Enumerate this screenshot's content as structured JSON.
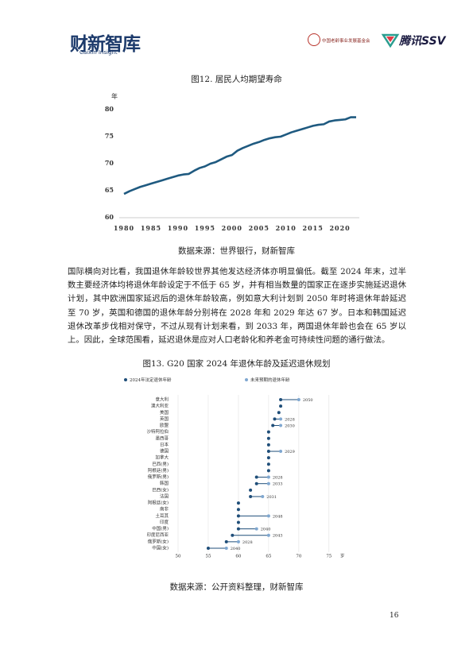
{
  "header": {
    "logo": "财新智库",
    "logo_en": "Caixin Insight",
    "partner_1": "中国老龄事业发展基金会",
    "partner_2": "腾讯SSV"
  },
  "chart_data": [
    {
      "type": "line",
      "title": "图12. 居民人均期望寿命",
      "y_unit": "年",
      "source": "数据来源：世界银行，财新智库",
      "x": [
        1980,
        1981,
        1982,
        1983,
        1984,
        1985,
        1986,
        1987,
        1988,
        1989,
        1990,
        1991,
        1992,
        1993,
        1994,
        1995,
        1996,
        1997,
        1998,
        1999,
        2000,
        2001,
        2002,
        2003,
        2004,
        2005,
        2006,
        2007,
        2008,
        2009,
        2010,
        2011,
        2012,
        2013,
        2014,
        2015,
        2016,
        2017,
        2018,
        2019,
        2020,
        2021,
        2022,
        2023
      ],
      "values": [
        64.4,
        64.9,
        65.3,
        65.7,
        66.0,
        66.3,
        66.6,
        66.9,
        67.2,
        67.5,
        67.8,
        68.0,
        68.1,
        68.7,
        69.2,
        69.5,
        70.0,
        70.3,
        70.8,
        71.3,
        71.6,
        72.4,
        72.9,
        73.3,
        73.7,
        74.0,
        74.4,
        74.7,
        74.9,
        75.0,
        75.4,
        75.8,
        76.1,
        76.4,
        76.7,
        77.0,
        77.2,
        77.3,
        77.8,
        78.0,
        78.1,
        78.2,
        78.6,
        78.6
      ],
      "color": "#1f5a80",
      "xlim": [
        1980,
        2023
      ],
      "ylim": [
        60,
        80
      ],
      "xticks": [
        1980,
        1985,
        1990,
        1995,
        2000,
        2005,
        2010,
        2015,
        2020
      ],
      "yticks": [
        60,
        65,
        70,
        75,
        80
      ]
    },
    {
      "type": "dumbbell",
      "title": "图13. G20 国家 2024 年退休年龄及延迟退休规划",
      "x_unit": "岁",
      "source": "数据来源：公开资料整理，财新智库",
      "categories": [
        "意大利",
        "澳大利亚",
        "美国",
        "英国",
        "欧盟",
        "沙特阿拉伯",
        "墨西哥",
        "日本",
        "德国",
        "加拿大",
        "巴西(男)",
        "阿根廷(男)",
        "俄罗斯(男)",
        "韩国",
        "巴西(女)",
        "法国",
        "阿根廷(女)",
        "南非",
        "土耳其",
        "印度",
        "中国(男)",
        "印度尼西亚",
        "俄罗斯(女)",
        "中国(女)"
      ],
      "series": [
        {
          "name": "2024年法定退休年龄",
          "color": "#1f4e79",
          "values": [
            67,
            67,
            66.7,
            66,
            65.7,
            65,
            65,
            65,
            65,
            65,
            65,
            65,
            63,
            63,
            62,
            62,
            60,
            60,
            60,
            60,
            60,
            59,
            58,
            55
          ]
        },
        {
          "name": "未来预期的退休年龄",
          "color": "#7fa7d0",
          "values": [
            70,
            null,
            null,
            67,
            67,
            null,
            null,
            null,
            67,
            null,
            null,
            null,
            65,
            65,
            null,
            64,
            null,
            null,
            65,
            null,
            63,
            65,
            60,
            58
          ]
        }
      ],
      "target_years": [
        "2050",
        null,
        null,
        "2028",
        "2030",
        null,
        null,
        null,
        "2029",
        null,
        null,
        null,
        "2028",
        "2033",
        null,
        "2031",
        null,
        null,
        "2048",
        null,
        "2040",
        "2043",
        "2028",
        "2040"
      ],
      "xlim": [
        50,
        77
      ],
      "xticks": [
        50,
        55,
        60,
        65,
        70,
        75
      ],
      "grid": true
    }
  ],
  "body": {
    "paragraph": "国际横向对比看，我国退休年龄较世界其他发达经济体亦明显偏低。截至 2024 年末，过半数主要经济体均将退休年龄设定于不低于 65 岁，并有相当数量的国家正在逐步实施延迟退休计划，其中欧洲国家延迟后的退休年龄较高，例如意大利计划到 2050 年时将退休年龄延迟至 70 岁，英国和德国的退休年龄分别将在 2028 年和 2029 年达 67 岁。日本和韩国延迟退休改革步伐相对保守，不过从现有计划来看，到 2033 年，两国退休年龄也会在 65 岁以上。因此，全球范围看，延迟退休是应对人口老龄化和养老金可持续性问题的通行做法。"
  },
  "page_number": "16"
}
